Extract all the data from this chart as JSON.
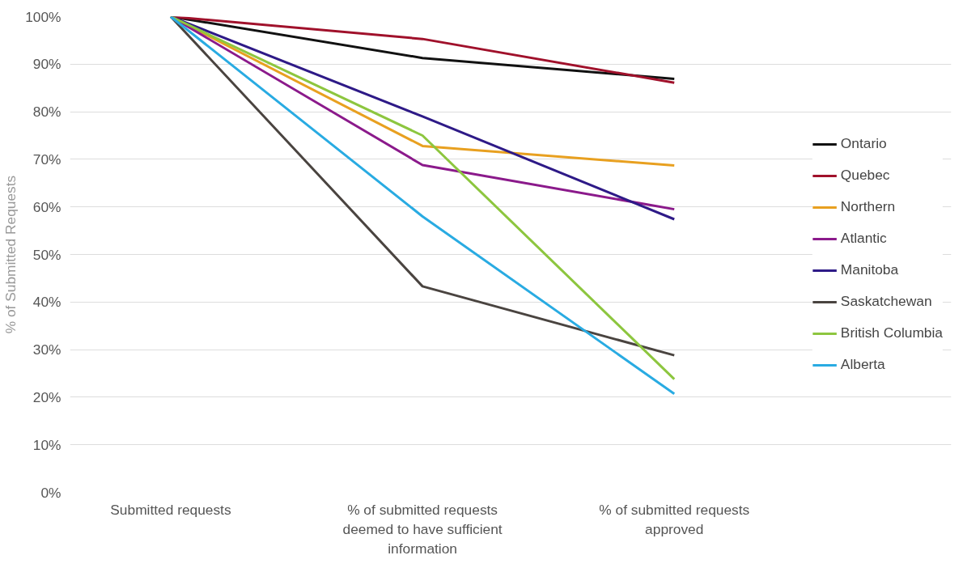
{
  "chart_data": {
    "type": "line",
    "ylabel": "% of Submitted Requests",
    "categories": [
      "Submitted requests",
      "% of submitted requests deemed to have sufficient information",
      "% of submitted requests approved"
    ],
    "ylim": [
      0,
      100
    ],
    "yticks": [
      {
        "value": 0,
        "label": "0%"
      },
      {
        "value": 10,
        "label": "10%"
      },
      {
        "value": 20,
        "label": "20%"
      },
      {
        "value": 30,
        "label": "30%"
      },
      {
        "value": 40,
        "label": "40%"
      },
      {
        "value": 50,
        "label": "50%"
      },
      {
        "value": 60,
        "label": "60%"
      },
      {
        "value": 70,
        "label": "70%"
      },
      {
        "value": 80,
        "label": "80%"
      },
      {
        "value": 90,
        "label": "90%"
      },
      {
        "value": 100,
        "label": "100%"
      }
    ],
    "grid": "y",
    "legend": "right",
    "marker": "none",
    "line_style": "solid",
    "series": [
      {
        "name": "Ontario",
        "color": "#111111",
        "values": [
          100,
          91.3,
          86.9
        ]
      },
      {
        "name": "Quebec",
        "color": "#a0112b",
        "values": [
          100,
          95.3,
          86.1
        ]
      },
      {
        "name": "Northern",
        "color": "#e8a020",
        "values": [
          100,
          72.8,
          68.7
        ]
      },
      {
        "name": "Atlantic",
        "color": "#8b1a8b",
        "values": [
          100,
          68.8,
          59.5
        ]
      },
      {
        "name": "Manitoba",
        "color": "#2e1a87",
        "values": [
          100,
          79,
          57.4
        ]
      },
      {
        "name": "Saskatchewan",
        "color": "#4a4440",
        "values": [
          100,
          43.3,
          28.8
        ]
      },
      {
        "name": "British Columbia",
        "color": "#8dc63f",
        "values": [
          100,
          75,
          23.8
        ]
      },
      {
        "name": "Alberta",
        "color": "#29abe2",
        "values": [
          100,
          58,
          20.7
        ]
      }
    ]
  }
}
